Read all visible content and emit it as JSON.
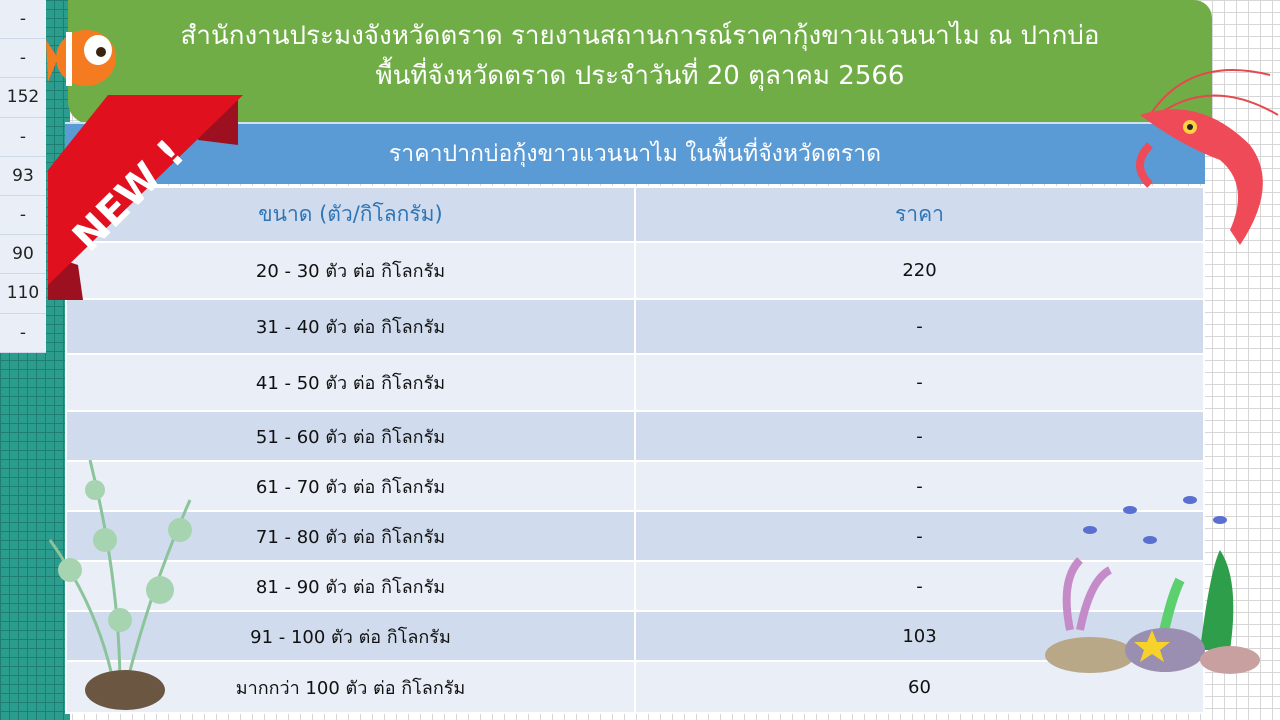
{
  "left_column_values": [
    "-",
    "-",
    "152",
    "-",
    "93",
    "-",
    "90",
    "110",
    "-"
  ],
  "header": {
    "line1": "สำนักงานประมงจังหวัดตราด รายงานสถานการณ์ราคากุ้งขาวแวนนาไม ณ ปากบ่อ",
    "line2": "พื้นที่จังหวัดตราด ประจำวันที่ 20 ตุลาคม 2566"
  },
  "subtitle": "ราคาปากบ่อกุ้งขาวแวนนาไม ในพื้นที่จังหวัดตราด",
  "badge": "NEW !",
  "table": {
    "headers": [
      "ขนาด (ตัว/กิโลกรัม)",
      "ราคา"
    ],
    "rows": [
      [
        "20 - 30 ตัว ต่อ กิโลกรัม",
        "220"
      ],
      [
        "31 - 40 ตัว ต่อ กิโลกรัม",
        "-"
      ],
      [
        "41 - 50 ตัว ต่อ กิโลกรัม",
        "-"
      ],
      [
        "51 - 60 ตัว ต่อ กิโลกรัม",
        "-"
      ],
      [
        "61 - 70 ตัว ต่อ กิโลกรัม",
        "-"
      ],
      [
        "71 - 80 ตัว ต่อ กิโลกรัม",
        "-"
      ],
      [
        "81 - 90 ตัว ต่อ กิโลกรัม",
        "-"
      ],
      [
        "91 - 100 ตัว ต่อ กิโลกรัม",
        "103"
      ],
      [
        "มากกว่า 100 ตัว ต่อ กิโลกรัม",
        "60"
      ]
    ]
  },
  "colors": {
    "header_green": "#70ad47",
    "subbar_blue": "#5b9bd5",
    "header_text_blue": "#2e75b6",
    "ribbon_red": "#e0101e"
  }
}
